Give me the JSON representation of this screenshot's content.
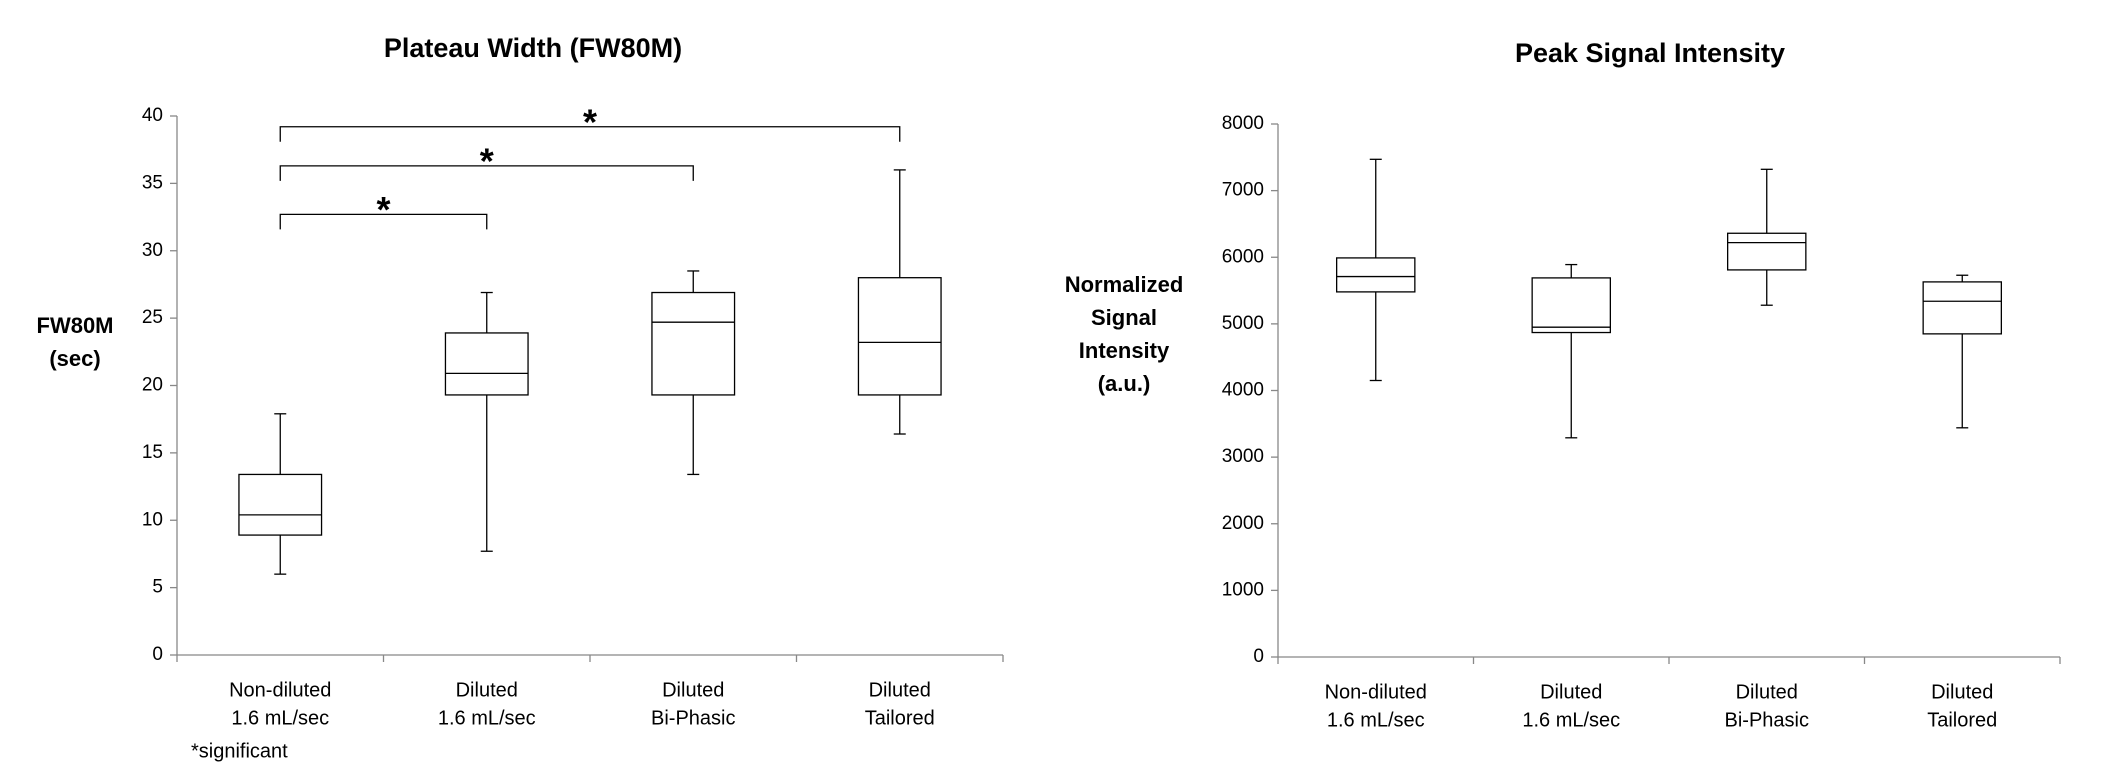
{
  "chart_data": [
    {
      "type": "box",
      "title": "Plateau Width (FW80M)",
      "ylabel": [
        "FW80M",
        "(sec)"
      ],
      "categories": [
        [
          "Non-diluted",
          "1.6 mL/sec"
        ],
        [
          "Diluted",
          "1.6 mL/sec"
        ],
        [
          "Diluted",
          "Bi-Phasic"
        ],
        [
          "Diluted",
          "Tailored"
        ]
      ],
      "min": [
        6,
        7.7,
        13.4,
        16.4
      ],
      "q1": [
        8.9,
        19.3,
        19.3,
        19.3
      ],
      "median": [
        10.4,
        20.9,
        24.7,
        23.2
      ],
      "q3": [
        13.4,
        23.9,
        26.9,
        28.0
      ],
      "max": [
        17.9,
        26.9,
        28.5,
        36.0
      ],
      "ylim": [
        0,
        40
      ],
      "yticks": [
        0,
        5,
        10,
        15,
        20,
        25,
        30,
        35,
        40
      ],
      "color": "#000000",
      "annotations": [
        "*",
        "*",
        "*"
      ],
      "note": "*significant"
    },
    {
      "type": "box",
      "title": "Peak Signal Intensity",
      "ylabel": [
        "Normalized",
        "Signal",
        "Intensity",
        "(a.u.)"
      ],
      "categories": [
        [
          "Non-diluted",
          "1.6 mL/sec"
        ],
        [
          "Diluted",
          "1.6 mL/sec"
        ],
        [
          "Diluted",
          "Bi-Phasic"
        ],
        [
          "Diluted",
          "Tailored"
        ]
      ],
      "min": [
        4150,
        3290,
        5280,
        3440
      ],
      "q1": [
        5480,
        4870,
        5810,
        4850
      ],
      "median": [
        5710,
        4950,
        6220,
        5340
      ],
      "q3": [
        5990,
        5690,
        6360,
        5630
      ],
      "max": [
        7470,
        5890,
        7320,
        5730
      ],
      "ylim": [
        0,
        8000
      ],
      "yticks": [
        0,
        1000,
        2000,
        3000,
        4000,
        5000,
        6000,
        7000,
        8000
      ],
      "color": "#000000"
    }
  ]
}
